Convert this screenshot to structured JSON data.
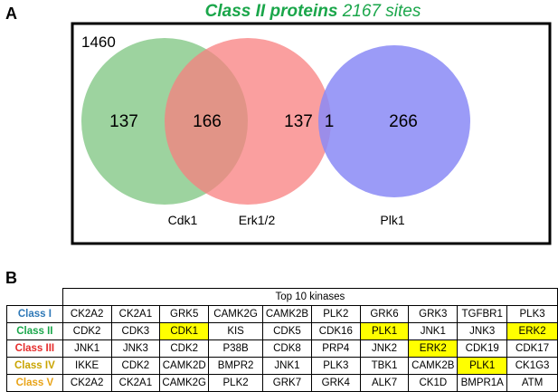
{
  "panel_a_label": "A",
  "panel_b_label": "B",
  "venn": {
    "title_bold": "Class II proteins",
    "title_rest": " 2167 sites",
    "title_color": "#1aa64a",
    "outside_count": "1460",
    "counts": {
      "cdk1_only": "137",
      "cdk1_erk": "166",
      "erk_only": "137",
      "erk_plk": "1",
      "plk_only": "266"
    },
    "sets": [
      {
        "label": "Cdk1",
        "color": "#7cc47f"
      },
      {
        "label": "Erk1/2",
        "color": "#f87f7f"
      },
      {
        "label": "Plk1",
        "color": "#8a8af6"
      }
    ]
  },
  "table": {
    "header": "Top 10 kinases",
    "highlight_color": "#ffff00",
    "rows": [
      {
        "class": "Class I",
        "color": "#2e78b7",
        "kinases": [
          "CK2A2",
          "CK2A1",
          "GRK5",
          "CAMK2G",
          "CAMK2B",
          "PLK2",
          "GRK6",
          "GRK3",
          "TGFBR1",
          "PLK3"
        ],
        "highlight": []
      },
      {
        "class": "Class II",
        "color": "#1aa64a",
        "kinases": [
          "CDK2",
          "CDK3",
          "CDK1",
          "KIS",
          "CDK5",
          "CDK16",
          "PLK1",
          "JNK1",
          "JNK3",
          "ERK2"
        ],
        "highlight": [
          2,
          6,
          9
        ]
      },
      {
        "class": "Class III",
        "color": "#e52b2b",
        "kinases": [
          "JNK1",
          "JNK3",
          "CDK2",
          "P38B",
          "CDK8",
          "PRP4",
          "JNK2",
          "ERK2",
          "CDK19",
          "CDK17"
        ],
        "highlight": [
          7
        ]
      },
      {
        "class": "Class IV",
        "color": "#c9a400",
        "kinases": [
          "IKKE",
          "CDK2",
          "CAMK2D",
          "BMPR2",
          "JNK1",
          "PLK3",
          "TBK1",
          "CAMK2B",
          "PLK1",
          "CK1G3"
        ],
        "highlight": [
          8
        ]
      },
      {
        "class": "Class V",
        "color": "#e8a317",
        "kinases": [
          "CK2A2",
          "CK2A1",
          "CAMK2G",
          "PLK2",
          "GRK7",
          "GRK4",
          "ALK7",
          "CK1D",
          "BMPR1A",
          "ATM"
        ],
        "highlight": []
      }
    ]
  }
}
